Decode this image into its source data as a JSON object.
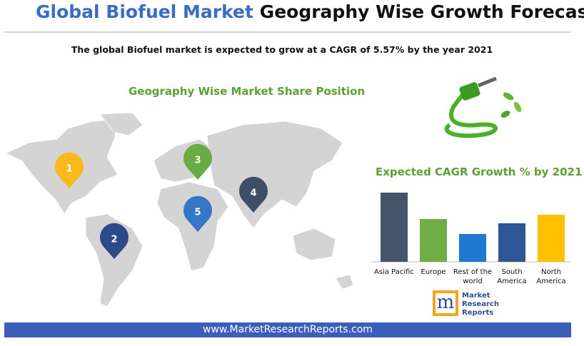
{
  "header": {
    "title_part1": "Global Biofuel Market",
    "title_part2": "Geography Wise Growth Forecast"
  },
  "subtitle": "The global Biofuel market is expected to grow at a CAGR of 5.57% by the year 2021",
  "map": {
    "title": "Geography Wise Market Share Position",
    "pins": [
      "1",
      "2",
      "3",
      "4",
      "5"
    ]
  },
  "chart_data": {
    "type": "bar",
    "title": "Expected CAGR Growth % by 2021",
    "categories": [
      "Asia Pacific",
      "Europe",
      "Rest of the world",
      "South America",
      "North America"
    ],
    "values": [
      9.7,
      6.0,
      3.9,
      5.4,
      6.6
    ],
    "colors": [
      "#44546a",
      "#70ad47",
      "#1f78d1",
      "#2f5597",
      "#ffc000"
    ]
  },
  "logo": {
    "initial": "m",
    "line1": "Market",
    "line2": "Research",
    "line3": "Reports"
  },
  "footer": "www.MarketResearchReports.com"
}
